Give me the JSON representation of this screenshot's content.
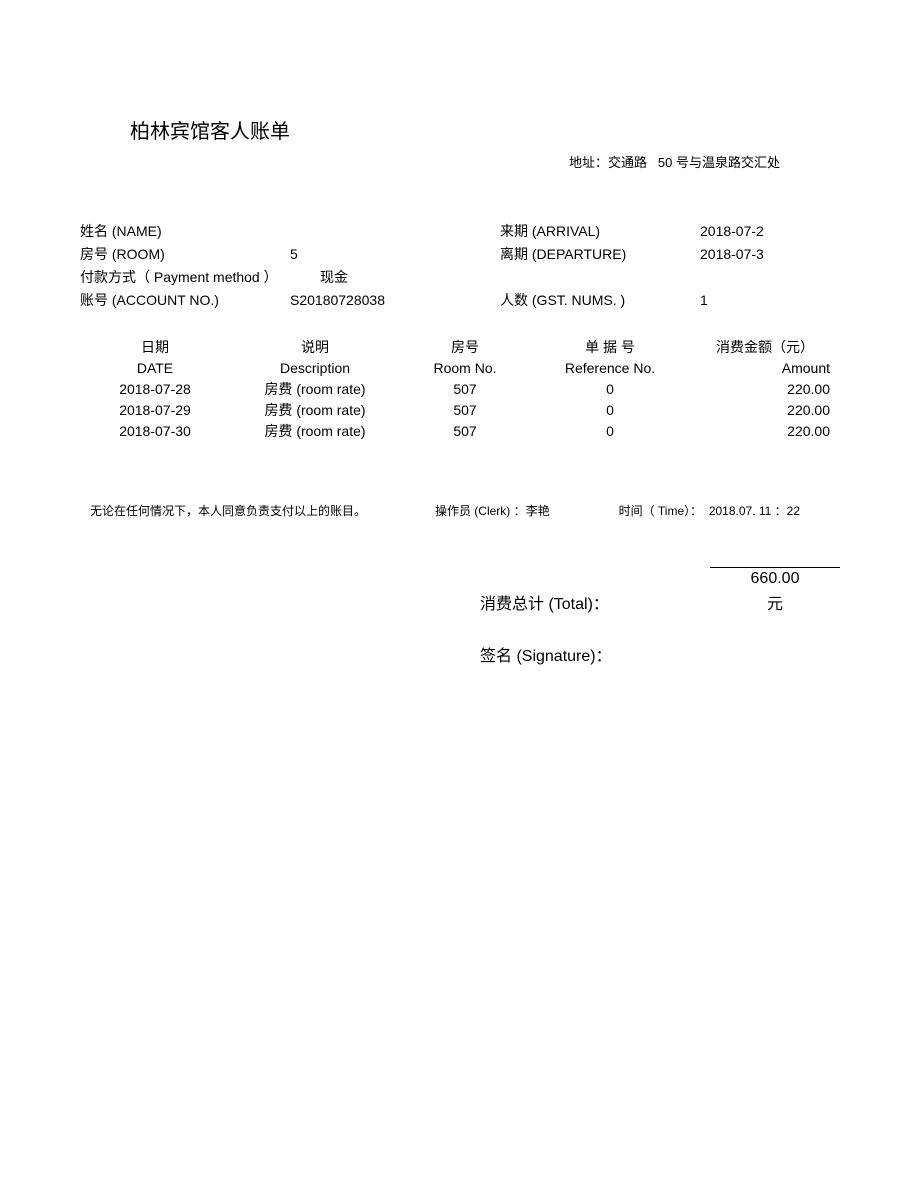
{
  "title": "柏林宾馆客人账单",
  "address_label": "地址：交通路",
  "address_number": "50",
  "address_suffix": "号与温泉路交汇处",
  "info": {
    "name_label": "姓名 (NAME)",
    "name_value": "",
    "arrival_label": "来期 (ARRIVAL)",
    "arrival_value": "2018-07-2",
    "room_label": "房号 (ROOM)",
    "room_value": "5",
    "departure_label": "离期 (DEPARTURE)",
    "departure_value": "2018-07-3",
    "payment_label": "付款方式（ Payment method  ）",
    "payment_value": "现金",
    "account_label": "账号 (ACCOUNT NO.)",
    "account_value": "S20180728038",
    "guests_label": "人数 (GST. NUMS. )",
    "guests_value": "1"
  },
  "table": {
    "headers_cn": {
      "date": "日期",
      "desc": "说明",
      "room": "房号",
      "ref": "单 据 号",
      "amount": "消费金额（元）"
    },
    "headers_en": {
      "date": "DATE",
      "desc": "Description",
      "room": "Room No.",
      "ref": "Reference No.",
      "amount": "Amount"
    },
    "rows": [
      {
        "date": "2018-07-28",
        "desc": "房费 (room rate)",
        "room": "507",
        "ref": "0",
        "amount": "220.00"
      },
      {
        "date": "2018-07-29",
        "desc": "房费 (room rate)",
        "room": "507",
        "ref": "0",
        "amount": "220.00"
      },
      {
        "date": "2018-07-30",
        "desc": "房费 (room rate)",
        "room": "507",
        "ref": "0",
        "amount": "220.00"
      }
    ]
  },
  "footer": {
    "disclaimer": "无论在任何情况下，本人同意负责支付以上的账目。",
    "clerk_label": "操作员 (Clerk) ：",
    "clerk_value": "李艳",
    "time_label": "时间（ Time）：",
    "time_value": "2018.07. 11 ：22"
  },
  "total": {
    "label": "消费总计 (Total)：",
    "amount": "660.00",
    "currency": "元"
  },
  "signature_label": "签名 (Signature)："
}
